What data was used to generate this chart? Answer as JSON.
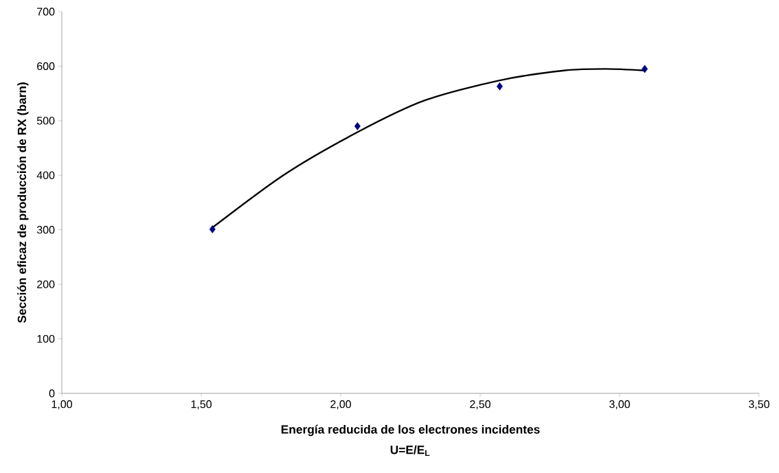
{
  "chart_data": {
    "type": "scatter",
    "xlabel": "Energía reducida de los electrones incidentes",
    "ylabel": "Sección eficaz de producción de RX (barn)",
    "annotations": [
      "U=E/E$_{L}$"
    ],
    "series": [
      {
        "color": "#000080",
        "marker": "diamond",
        "x": [
          1.54,
          2.06,
          2.57,
          3.09
        ],
        "values": [
          301,
          490,
          563,
          595
        ]
      },
      {
        "type": "line",
        "color": "#000000",
        "marker": "none",
        "line_style": "solid",
        "x": [
          1.54,
          1.8,
          2.06,
          2.3,
          2.57,
          2.8,
          2.95,
          3.09
        ],
        "values": [
          304,
          402,
          479,
          537,
          574,
          592,
          595,
          592
        ]
      }
    ],
    "xlim": [
      1.0,
      3.5
    ],
    "xticks": [
      {
        "value": 1.0,
        "label": "1,00"
      },
      {
        "value": 1.5,
        "label": "1,50"
      },
      {
        "value": 2.0,
        "label": "2,00"
      },
      {
        "value": 2.5,
        "label": "2,50"
      },
      {
        "value": 3.0,
        "label": "3,00"
      },
      {
        "value": 3.5,
        "label": "3,50"
      }
    ],
    "ylim": [
      0,
      700
    ],
    "yticks": [
      0,
      100,
      200,
      300,
      400,
      500,
      600,
      700
    ],
    "grid": false,
    "legend": false
  }
}
